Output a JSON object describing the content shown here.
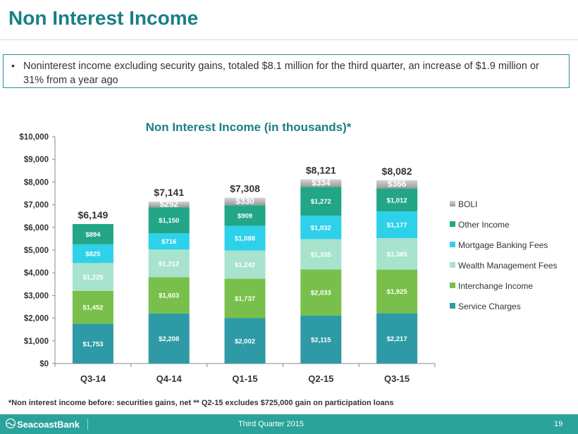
{
  "slide": {
    "title": "Non Interest Income",
    "bullet": "Noninterest income excluding security gains, totaled $8.1 million for the third quarter, an increase of $1.9 million or 31% from a year ago",
    "footnote": "*Non interest income before: securities gains, net  ** Q2-15 excludes $725,000 gain on participation loans",
    "footer_brand": "SeacoastBank",
    "footer_center": "Third Quarter 2015",
    "page_number": "19"
  },
  "chart_data": {
    "type": "bar",
    "stacked": true,
    "title": "Non Interest Income (in thousands)*",
    "categories": [
      "Q3-14",
      "Q4-14",
      "Q1-15",
      "Q2-15",
      "Q3-15"
    ],
    "ylim": [
      0,
      10000
    ],
    "yticks": [
      "$0",
      "$1,000",
      "$2,000",
      "$3,000",
      "$4,000",
      "$5,000",
      "$6,000",
      "$7,000",
      "$8,000",
      "$9,000",
      "$10,000"
    ],
    "totals": [
      "$6,149",
      "$7,141",
      "$7,308",
      "$8,121",
      "$8,082"
    ],
    "series": [
      {
        "name": "Service Charges",
        "color": "#2e9aa6",
        "values": [
          1753,
          2208,
          2002,
          2115,
          2217
        ],
        "labels": [
          "$1,753",
          "$2,208",
          "$2,002",
          "$2,115",
          "$2,217"
        ]
      },
      {
        "name": "Interchange Income",
        "color": "#78c04b",
        "values": [
          1452,
          1603,
          1737,
          2033,
          1925
        ],
        "labels": [
          "$1,452",
          "$1,603",
          "$1,737",
          "$2,033",
          "$1,925"
        ]
      },
      {
        "name": "Wealth Management Fees",
        "color": "#a7e3cd",
        "values": [
          1225,
          1212,
          1242,
          1335,
          1385
        ],
        "labels": [
          "$1,225",
          "$1,212",
          "$1,242",
          "$1,335",
          "$1,385"
        ]
      },
      {
        "name": "Mortgage Banking Fees",
        "color": "#2ed1ea",
        "values": [
          825,
          716,
          1088,
          1032,
          1177
        ],
        "labels": [
          "$825",
          "$716",
          "$1,088",
          "$1,032",
          "$1,177"
        ]
      },
      {
        "name": "Other Income",
        "color": "#22a687",
        "values": [
          894,
          1150,
          909,
          1272,
          1012
        ],
        "labels": [
          "$894",
          "$1,150",
          "$909",
          "$1,272",
          "$1,012"
        ]
      },
      {
        "name": "BOLI",
        "color": "#b3b3b3",
        "values": [
          0,
          252,
          330,
          334,
          366
        ],
        "labels": [
          "",
          "$252",
          "$330",
          "$334",
          "$366"
        ]
      }
    ],
    "legend_position": "right",
    "grid": false
  }
}
